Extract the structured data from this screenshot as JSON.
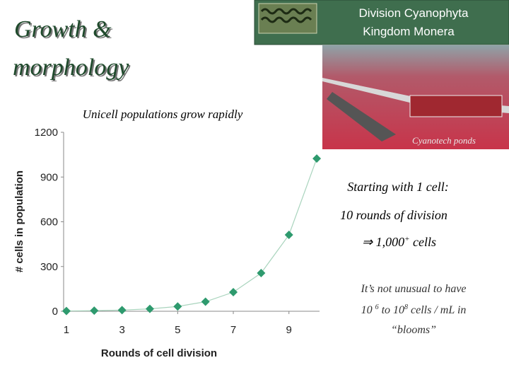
{
  "slide": {
    "title_lines": [
      "Growth &",
      "morphology"
    ],
    "banner": [
      "Division Cyanophyta",
      "Kingdom Monera"
    ],
    "photo_caption": "Cyanotech  ponds",
    "notes": [
      "Starting with 1 cell:",
      "10 rounds of division",
      "⇒ 1,000",
      "+",
      " cells"
    ],
    "blooms": {
      "line1": "It’s not unusual to have",
      "a": "10 ",
      "a_sup": "6",
      "b": " to 10",
      "b_sup": "8",
      "c": " cells / mL in",
      "line3": "“blooms”"
    }
  },
  "chart_data": {
    "type": "line",
    "title": "Unicell populations grow rapidly",
    "x_label": "Rounds of cell division",
    "y_label": "# cells in population",
    "x": [
      1,
      2,
      3,
      4,
      5,
      6,
      7,
      8,
      9,
      10
    ],
    "values": [
      2,
      4,
      8,
      16,
      32,
      64,
      128,
      256,
      512,
      1024
    ],
    "color": "#2e9a6e",
    "line_color": "#a9d4bd",
    "xlim": [
      0.9,
      10.1
    ],
    "xticks": [
      1,
      3,
      5,
      7,
      9
    ],
    "ylim": [
      0,
      1200
    ],
    "yticks": [
      0,
      300,
      600,
      900,
      1200
    ],
    "grid": false
  }
}
